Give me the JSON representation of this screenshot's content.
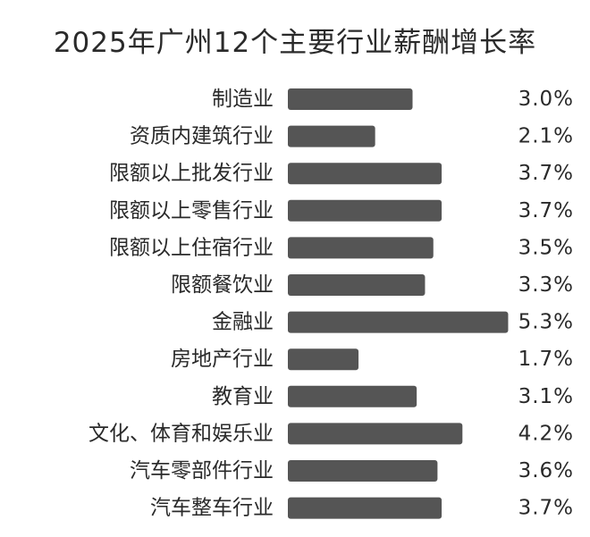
{
  "chart_data": {
    "type": "bar",
    "orientation": "horizontal",
    "title": "2025年广州12个主要行业薪酬增长率",
    "categories": [
      "制造业",
      "资质内建筑行业",
      "限额以上批发行业",
      "限额以上零售行业",
      "限额以上住宿行业",
      "限额餐饮业",
      "金融业",
      "房地产行业",
      "教育业",
      "文化、体育和娱乐业",
      "汽车零部件行业",
      "汽车整车行业"
    ],
    "values": [
      3.0,
      2.1,
      3.7,
      3.7,
      3.5,
      3.3,
      5.3,
      1.7,
      3.1,
      4.2,
      3.6,
      3.7
    ],
    "value_labels": [
      "3.0%",
      "2.1%",
      "3.7%",
      "3.7%",
      "3.5%",
      "3.3%",
      "5.3%",
      "1.7%",
      "3.1%",
      "4.2%",
      "3.6%",
      "3.7%"
    ],
    "unit": "%",
    "bar_color": "#555555",
    "grid": false,
    "legend": "none"
  }
}
